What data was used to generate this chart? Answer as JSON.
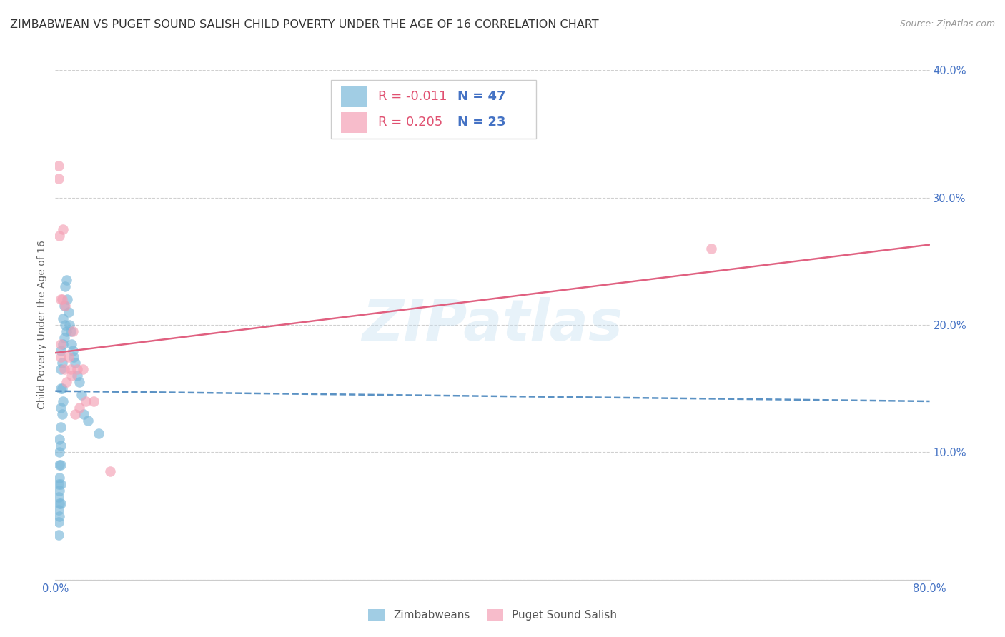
{
  "title": "ZIMBABWEAN VS PUGET SOUND SALISH CHILD POVERTY UNDER THE AGE OF 16 CORRELATION CHART",
  "source": "Source: ZipAtlas.com",
  "ylabel": "Child Poverty Under the Age of 16",
  "xlim": [
    0.0,
    0.8
  ],
  "ylim": [
    0.0,
    0.4
  ],
  "xticks": [
    0.0,
    0.1,
    0.2,
    0.3,
    0.4,
    0.5,
    0.6,
    0.7,
    0.8
  ],
  "xticklabels": [
    "0.0%",
    "",
    "",
    "",
    "",
    "",
    "",
    "",
    "80.0%"
  ],
  "yticks": [
    0.0,
    0.1,
    0.2,
    0.3,
    0.4
  ],
  "yticklabels": [
    "",
    "10.0%",
    "20.0%",
    "30.0%",
    "40.0%"
  ],
  "blue_color": "#7ab8d9",
  "pink_color": "#f4a0b5",
  "blue_line_color": "#5b92c4",
  "pink_line_color": "#e06080",
  "legend_R1": "-0.011",
  "legend_N1": "47",
  "legend_R2": "0.205",
  "legend_N2": "23",
  "blue_label": "Zimbabweans",
  "pink_label": "Puget Sound Salish",
  "watermark": "ZIPatlas",
  "blue_scatter_x": [
    0.003,
    0.003,
    0.003,
    0.003,
    0.003,
    0.004,
    0.004,
    0.004,
    0.004,
    0.004,
    0.004,
    0.004,
    0.005,
    0.005,
    0.005,
    0.005,
    0.005,
    0.005,
    0.005,
    0.005,
    0.005,
    0.006,
    0.006,
    0.006,
    0.007,
    0.007,
    0.007,
    0.008,
    0.008,
    0.009,
    0.009,
    0.01,
    0.01,
    0.011,
    0.012,
    0.013,
    0.014,
    0.015,
    0.016,
    0.017,
    0.018,
    0.02,
    0.022,
    0.024,
    0.026,
    0.03,
    0.04
  ],
  "blue_scatter_y": [
    0.035,
    0.045,
    0.055,
    0.065,
    0.075,
    0.05,
    0.06,
    0.07,
    0.08,
    0.09,
    0.1,
    0.11,
    0.06,
    0.075,
    0.09,
    0.105,
    0.12,
    0.135,
    0.15,
    0.165,
    0.18,
    0.13,
    0.15,
    0.17,
    0.14,
    0.185,
    0.205,
    0.19,
    0.215,
    0.2,
    0.23,
    0.195,
    0.235,
    0.22,
    0.21,
    0.2,
    0.195,
    0.185,
    0.18,
    0.175,
    0.17,
    0.16,
    0.155,
    0.145,
    0.13,
    0.125,
    0.115
  ],
  "pink_scatter_x": [
    0.003,
    0.003,
    0.004,
    0.005,
    0.005,
    0.005,
    0.006,
    0.007,
    0.008,
    0.009,
    0.01,
    0.012,
    0.014,
    0.015,
    0.016,
    0.018,
    0.02,
    0.022,
    0.025,
    0.028,
    0.035,
    0.05,
    0.6
  ],
  "pink_scatter_y": [
    0.315,
    0.325,
    0.27,
    0.22,
    0.175,
    0.185,
    0.22,
    0.275,
    0.165,
    0.215,
    0.155,
    0.175,
    0.165,
    0.16,
    0.195,
    0.13,
    0.165,
    0.135,
    0.165,
    0.14,
    0.14,
    0.085,
    0.26
  ],
  "blue_line_y_start": 0.148,
  "blue_line_y_end": 0.14,
  "pink_line_y_start": 0.178,
  "pink_line_y_end": 0.263,
  "grid_color": "#d0d0d0",
  "background_color": "#ffffff",
  "title_fontsize": 11.5,
  "axis_label_fontsize": 10,
  "tick_fontsize": 10.5,
  "legend_fontsize": 13,
  "legend_color_r": "#e05070",
  "legend_color_n": "#4472c4"
}
